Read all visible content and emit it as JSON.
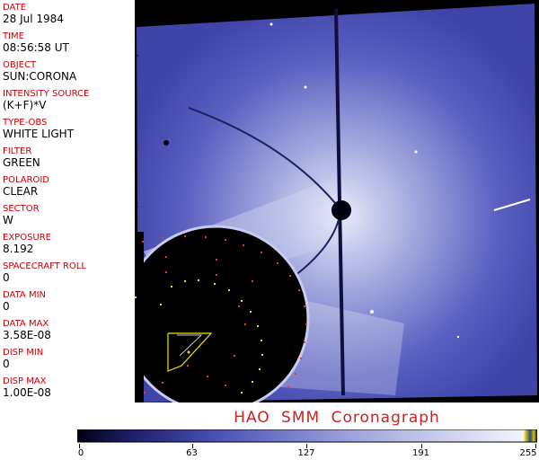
{
  "header": [
    {
      "label": "DATE",
      "value": "28 Jul 1984"
    },
    {
      "label": "TIME",
      "value": "08:56:58 UT"
    },
    {
      "label": "OBJECT",
      "value": "SUN:CORONA"
    },
    {
      "label": "INTENSITY SOURCE",
      "value": "(K+F)*V"
    },
    {
      "label": "TYPE-OBS",
      "value": "WHITE LIGHT"
    },
    {
      "label": "FILTER",
      "value": "GREEN"
    },
    {
      "label": "POLAROID",
      "value": "CLEAR"
    },
    {
      "label": "SECTOR",
      "value": "W"
    },
    {
      "label": "EXPOSURE",
      "value": "8.192"
    },
    {
      "label": "SPACECRAFT ROLL",
      "value": "0"
    },
    {
      "label": "DATA MIN",
      "value": "0"
    },
    {
      "label": "DATA MAX",
      "value": "3.58E-08"
    },
    {
      "label": "DISP MIN",
      "value": "0"
    },
    {
      "label": "DISP MAX",
      "value": "1.00E-08"
    }
  ],
  "instrument_title": "HAO  SMM Coronagraph",
  "colorbar": {
    "ticks": [
      "0",
      "63",
      "127",
      "191",
      "255"
    ],
    "tick_values": [
      0,
      63,
      127,
      191,
      255
    ],
    "min": 0,
    "max": 255
  },
  "colors": {
    "label": "#cc0000",
    "title": "#cc2222",
    "sky": "#4a4fb5",
    "occulter": "#000000"
  }
}
